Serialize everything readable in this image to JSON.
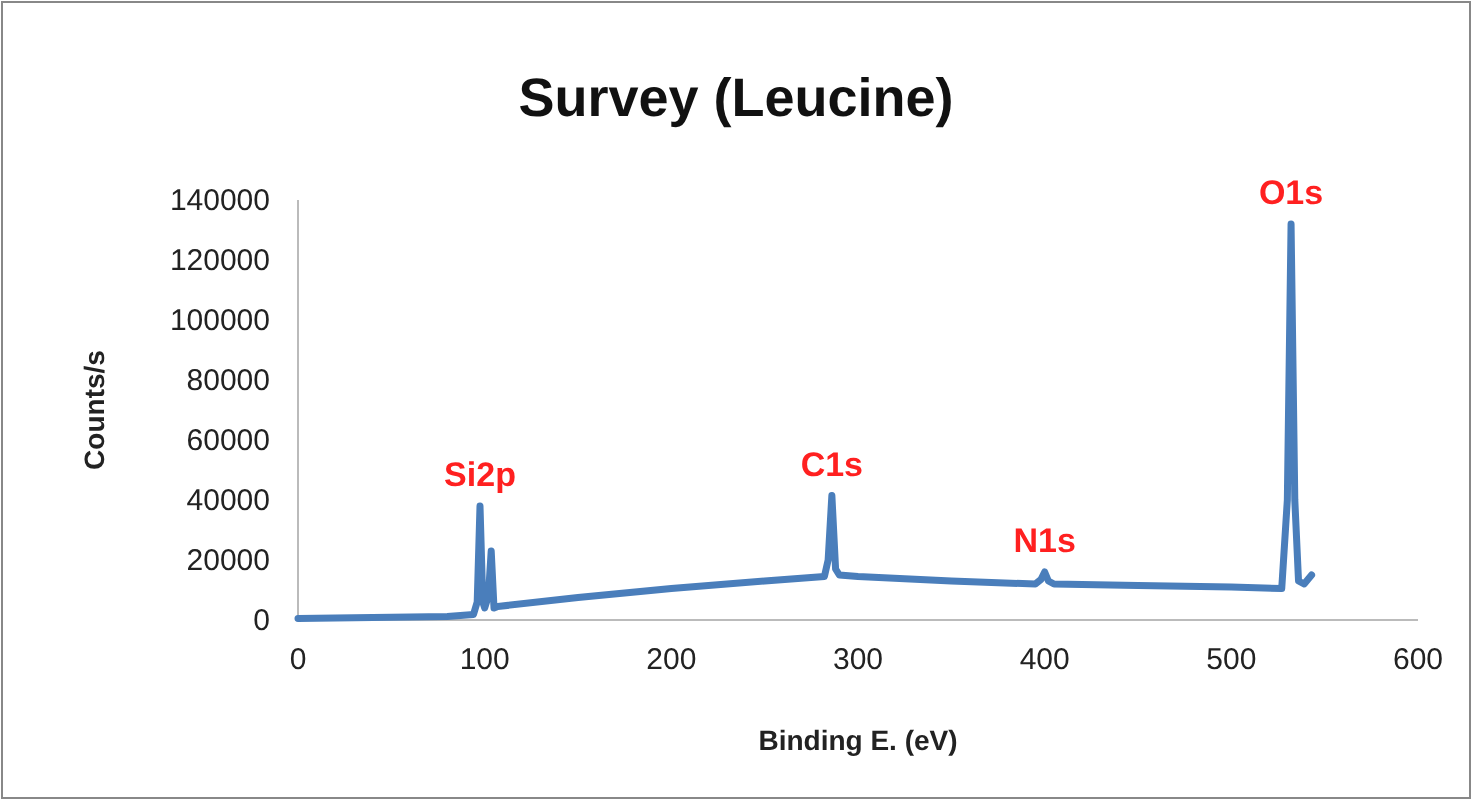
{
  "chart_data": {
    "type": "line",
    "title": "Survey (Leucine)",
    "xlabel": "Binding E. (eV)",
    "ylabel": "Counts/s",
    "xlim": [
      0,
      600
    ],
    "xticks": [
      0,
      100,
      200,
      300,
      400,
      500,
      600
    ],
    "ylim": [
      0,
      140000
    ],
    "yticks": [
      0,
      20000,
      40000,
      60000,
      80000,
      100000,
      120000,
      140000
    ],
    "grid": false,
    "marker": "none",
    "line_style": "solid",
    "series": [
      {
        "color": "#4a7ebb",
        "x": [
          0,
          40,
          80,
          94,
          96,
          97.5,
          99,
          100,
          102,
          103.5,
          105,
          107,
          150,
          200,
          250,
          282,
          284,
          286,
          288,
          290,
          300,
          350,
          395,
          398,
          400,
          402,
          405,
          450,
          500,
          527,
          530,
          532,
          534,
          536,
          539,
          543
        ],
        "values": [
          500,
          800,
          1200,
          1800,
          6000,
          38000,
          6000,
          4000,
          8000,
          23000,
          4000,
          4500,
          7500,
          10500,
          13000,
          14500,
          20000,
          41500,
          17000,
          15000,
          14500,
          13000,
          12000,
          13500,
          16000,
          13000,
          12000,
          11500,
          11000,
          10500,
          40000,
          132000,
          40000,
          13000,
          12000,
          15000
        ]
      }
    ],
    "annotations": [
      {
        "text": "Si2p",
        "x": 97.5,
        "y": 38000
      },
      {
        "text": "C1s",
        "x": 286,
        "y": 41500
      },
      {
        "text": "N1s",
        "x": 400,
        "y": 16000
      },
      {
        "text": "O1s",
        "x": 532,
        "y": 132000
      }
    ]
  }
}
